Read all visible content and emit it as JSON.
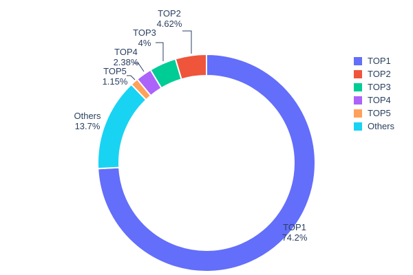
{
  "chart_data": {
    "type": "pie",
    "subtype": "donut",
    "hole_ratio": 0.8,
    "title": "",
    "labels": [
      "TOP1",
      "TOP2",
      "TOP3",
      "TOP4",
      "TOP5",
      "Others"
    ],
    "values": [
      74.2,
      4.62,
      4,
      2.38,
      1.15,
      13.7
    ],
    "percent_labels": [
      "74.2%",
      "4.62%",
      "4%",
      "2.38%",
      "1.15%",
      "13.7%"
    ],
    "colors": [
      "#636efa",
      "#ef553b",
      "#00cc96",
      "#ab63fa",
      "#ffa15a",
      "#19d3f3"
    ],
    "clockwise_order_from_top": [
      "TOP1",
      "Others",
      "TOP5",
      "TOP4",
      "TOP3",
      "TOP2"
    ],
    "legend": {
      "position": "right",
      "entries": [
        "TOP1",
        "TOP2",
        "TOP3",
        "TOP4",
        "TOP5",
        "Others"
      ]
    },
    "text_color": "#2a3f5f",
    "background_color": "#ffffff",
    "slice_border_color": "#ffffff",
    "labels_outside": true,
    "grid": false
  }
}
